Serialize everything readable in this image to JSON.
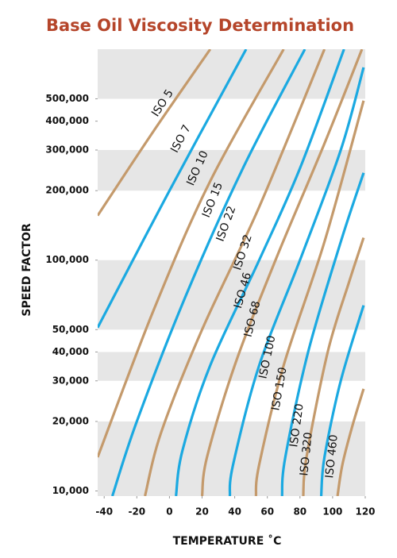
{
  "chart_data": {
    "type": "line",
    "title": "Base Oil Viscosity Determination",
    "x_label": "TEMPERATURE ˚C",
    "y_label": "SPEED FACTOR",
    "log_y": true,
    "xlim": [
      -44,
      120
    ],
    "ylim": [
      9500,
      820000
    ],
    "xticks": [
      -40,
      -20,
      0,
      20,
      40,
      60,
      80,
      100,
      120
    ],
    "yticks": [
      {
        "value": 10000,
        "label": "10,000"
      },
      {
        "value": 20000,
        "label": "20,000"
      },
      {
        "value": 30000,
        "label": "30,000"
      },
      {
        "value": 40000,
        "label": "40,000"
      },
      {
        "value": 50000,
        "label": "50,000"
      },
      {
        "value": 100000,
        "label": "100,000"
      },
      {
        "value": 200000,
        "label": "200,000"
      },
      {
        "value": 300000,
        "label": "300,000"
      },
      {
        "value": 400000,
        "label": "400,000"
      },
      {
        "value": 500000,
        "label": "500,000"
      }
    ],
    "bands": [
      [
        500000,
        820000
      ],
      [
        200000,
        300000
      ],
      [
        50000,
        100000
      ],
      [
        30000,
        40000
      ],
      [
        9500,
        20000
      ]
    ],
    "band_color": "#e6e6e6",
    "series": [
      {
        "name": "ISO 5",
        "color": "#c49a6c",
        "x": [
          -44,
          -10,
          25
        ],
        "values": [
          156000,
          360000,
          820000
        ]
      },
      {
        "name": "ISO 7",
        "color": "#1ba9e1",
        "x": [
          -44,
          0,
          47
        ],
        "values": [
          51000,
          200000,
          820000
        ]
      },
      {
        "name": "ISO 10",
        "color": "#c49a6c",
        "x": [
          -44,
          -10,
          25,
          70
        ],
        "values": [
          14000,
          60000,
          220000,
          820000
        ]
      },
      {
        "name": "ISO 15",
        "color": "#1ba9e1",
        "x": [
          -35,
          -20,
          10,
          45,
          83
        ],
        "values": [
          9500,
          20000,
          70000,
          250000,
          820000
        ]
      },
      {
        "name": "ISO 22",
        "color": "#c49a6c",
        "x": [
          -15,
          -5,
          20,
          55,
          95
        ],
        "values": [
          9500,
          18000,
          50000,
          170000,
          820000
        ]
      },
      {
        "name": "ISO 32",
        "color": "#1ba9e1",
        "x": [
          4,
          8,
          25,
          55,
          80,
          107
        ],
        "values": [
          9500,
          15000,
          35000,
          100000,
          250000,
          820000
        ]
      },
      {
        "name": "ISO 46",
        "color": "#c49a6c",
        "x": [
          20,
          23,
          40,
          65,
          95,
          118
        ],
        "values": [
          9500,
          14000,
          35000,
          100000,
          320000,
          820000
        ]
      },
      {
        "name": "ISO 68",
        "color": "#1ba9e1",
        "x": [
          37,
          39,
          55,
          80,
          105,
          119
        ],
        "values": [
          9500,
          13000,
          35000,
          100000,
          300000,
          684000
        ]
      },
      {
        "name": "ISO 100",
        "color": "#c49a6c",
        "x": [
          53,
          55,
          70,
          95,
          119
        ],
        "values": [
          9500,
          13000,
          35000,
          120000,
          491000
        ]
      },
      {
        "name": "ISO 150",
        "color": "#1ba9e1",
        "x": [
          69,
          71,
          85,
          105,
          119
        ],
        "values": [
          9500,
          14000,
          40000,
          120000,
          239000
        ]
      },
      {
        "name": "ISO 220",
        "color": "#c49a6c",
        "x": [
          82,
          84,
          97,
          110,
          119
        ],
        "values": [
          9500,
          14000,
          40000,
          80000,
          125000
        ]
      },
      {
        "name": "ISO 320",
        "color": "#1ba9e1",
        "x": [
          93,
          95,
          105,
          119
        ],
        "values": [
          9500,
          14000,
          30000,
          63700
        ]
      },
      {
        "name": "ISO 460",
        "color": "#c49a6c",
        "x": [
          103,
          106,
          112,
          119
        ],
        "values": [
          9500,
          13000,
          19000,
          27700
        ]
      }
    ]
  }
}
